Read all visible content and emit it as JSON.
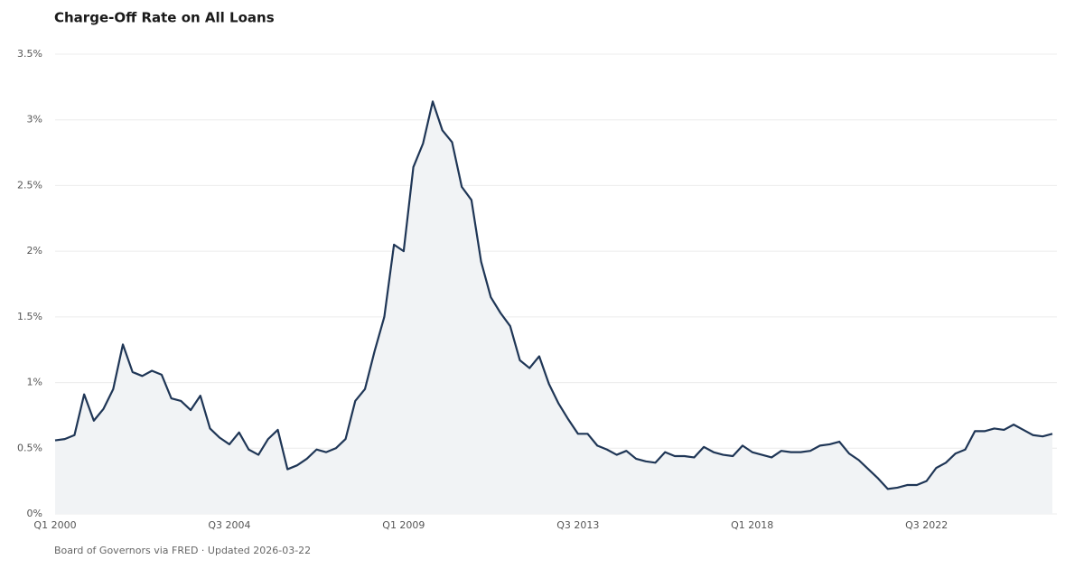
{
  "chart_data": {
    "type": "line",
    "title": "Charge-Off Rate on All Loans",
    "source": "Board of Governors via FRED · Updated 2026-03-22",
    "color": "#1f3656",
    "area_color": "#f1f3f5",
    "grid": true,
    "categories": [
      "Q1 2000",
      null,
      null,
      null,
      null,
      null,
      null,
      null,
      null,
      null,
      null,
      null,
      null,
      null,
      null,
      null,
      null,
      null,
      "Q3 2004",
      null,
      null,
      null,
      null,
      null,
      null,
      null,
      null,
      null,
      null,
      null,
      null,
      null,
      null,
      null,
      null,
      null,
      "Q1 2009",
      null,
      null,
      null,
      null,
      null,
      null,
      null,
      null,
      null,
      null,
      null,
      null,
      null,
      null,
      null,
      null,
      null,
      "Q3 2013",
      null,
      null,
      null,
      null,
      null,
      null,
      null,
      null,
      null,
      null,
      null,
      null,
      null,
      null,
      null,
      null,
      null,
      "Q1 2018",
      null,
      null,
      null,
      null,
      null,
      null,
      null,
      null,
      null,
      null,
      null,
      null,
      null,
      null,
      null,
      null,
      null,
      "Q3 2022",
      null,
      null,
      null,
      null,
      null,
      null,
      null,
      null,
      null,
      null,
      null,
      null,
      null
    ],
    "values": [
      0.56,
      0.57,
      0.6,
      0.91,
      0.71,
      0.8,
      0.95,
      1.29,
      1.08,
      1.05,
      1.09,
      1.06,
      0.88,
      0.86,
      0.79,
      0.9,
      0.65,
      0.58,
      0.53,
      0.62,
      0.49,
      0.45,
      0.57,
      0.64,
      0.34,
      0.37,
      0.42,
      0.49,
      0.47,
      0.5,
      0.57,
      0.86,
      0.95,
      1.24,
      1.5,
      2.05,
      2.0,
      2.64,
      2.82,
      3.14,
      2.92,
      2.83,
      2.49,
      2.39,
      1.92,
      1.65,
      1.53,
      1.43,
      1.17,
      1.11,
      1.2,
      0.99,
      0.84,
      0.72,
      0.61,
      0.61,
      0.52,
      0.49,
      0.45,
      0.48,
      0.42,
      0.4,
      0.39,
      0.47,
      0.44,
      0.44,
      0.43,
      0.51,
      0.47,
      0.45,
      0.44,
      0.52,
      0.47,
      0.45,
      0.43,
      0.48,
      0.47,
      0.47,
      0.48,
      0.52,
      0.53,
      0.55,
      0.46,
      0.41,
      0.34,
      0.27,
      0.19,
      0.2,
      0.22,
      0.22,
      0.25,
      0.35,
      0.39,
      0.46,
      0.49,
      0.63,
      0.63,
      0.65,
      0.64,
      0.68,
      0.64,
      0.6,
      0.59,
      0.61
    ],
    "ylim": [
      0,
      3.5
    ],
    "yticks": [
      {
        "value": 0,
        "label": "0%"
      },
      {
        "value": 0.5,
        "label": "0.5%"
      },
      {
        "value": 1,
        "label": "1%"
      },
      {
        "value": 1.5,
        "label": "1.5%"
      },
      {
        "value": 2,
        "label": "2%"
      },
      {
        "value": 2.5,
        "label": "2.5%"
      },
      {
        "value": 3,
        "label": "3%"
      },
      {
        "value": 3.5,
        "label": "3.5%"
      }
    ]
  }
}
